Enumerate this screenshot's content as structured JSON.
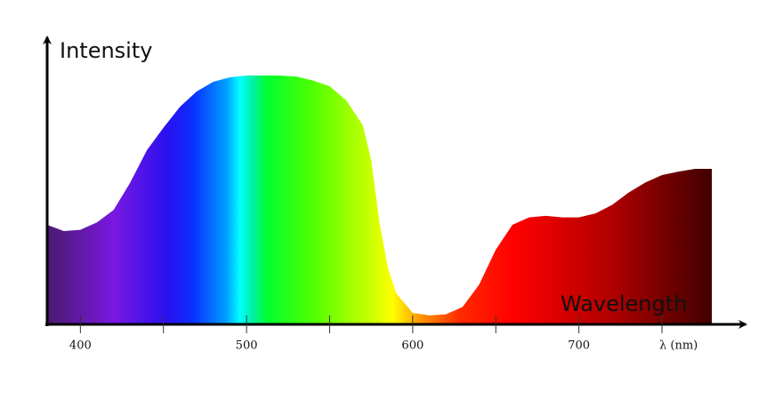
{
  "chart_data": {
    "type": "area",
    "y_label": "Intensity",
    "x_label": "Wavelength",
    "x_unit_label": "λ (nm)",
    "x": [
      380,
      390,
      400,
      410,
      420,
      430,
      440,
      450,
      460,
      470,
      480,
      490,
      500,
      510,
      520,
      530,
      540,
      550,
      560,
      570,
      575,
      580,
      585,
      590,
      600,
      610,
      620,
      630,
      640,
      650,
      660,
      670,
      680,
      690,
      700,
      710,
      720,
      730,
      740,
      750,
      760,
      770,
      780
    ],
    "y": [
      40,
      37.5,
      38,
      41,
      46,
      57,
      70,
      79,
      87.5,
      93.6,
      97.5,
      99.3,
      100,
      100,
      100,
      99.6,
      98,
      95.7,
      90,
      80,
      66,
      41,
      23,
      12.5,
      4.6,
      3.6,
      4,
      7,
      16,
      30,
      40,
      43,
      43.6,
      43,
      43,
      44.6,
      48,
      53,
      57,
      60,
      61.4,
      62.5,
      62.5
    ],
    "xlim": [
      380,
      780
    ],
    "ylim": [
      0,
      100
    ],
    "xticks": [
      400,
      500,
      600,
      700
    ],
    "minor_xticks": [
      450,
      550,
      650,
      750
    ],
    "x_unit_label_position": 760
  }
}
